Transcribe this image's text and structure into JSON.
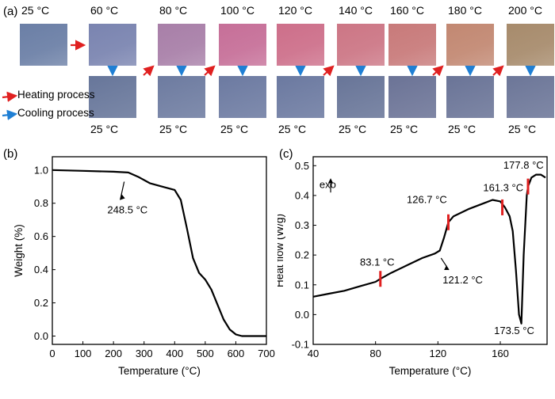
{
  "panel_a": {
    "label": "(a)",
    "top_temps": [
      "25 °C",
      "60 °C",
      "80 °C",
      "100 °C",
      "120 °C",
      "140 °C",
      "160 °C",
      "180 °C",
      "200 °C"
    ],
    "top_colors": [
      "#6b7fa6",
      "#7a84b0",
      "#a87fa8",
      "#c66f98",
      "#cd6f8a",
      "#cc7685",
      "#c87a7a",
      "#c28872",
      "#a78b6c"
    ],
    "bottom_temps": [
      "25 °C",
      "25 °C",
      "25 °C",
      "25 °C",
      "25 °C",
      "25 °C",
      "25 °C",
      "25 °C"
    ],
    "bottom_colors": [
      "#67769a",
      "#6d7ba0",
      "#6c7aa1",
      "#6b79a0",
      "#687598",
      "#6b7396",
      "#6a7497",
      "#6c7698"
    ],
    "legend": {
      "heating": "Heating process",
      "cooling": "Cooling process"
    },
    "arrow_colors": {
      "heating": "#e02020",
      "cooling": "#1f7fd4"
    }
  },
  "chart_data": [
    {
      "panel": "(b)",
      "type": "line",
      "xlabel": "Temperature (°C)",
      "ylabel": "Weight (%)",
      "xlim": [
        0,
        700
      ],
      "ylim": [
        -0.05,
        1.08
      ],
      "xticks": [
        0,
        100,
        200,
        300,
        400,
        500,
        600,
        700
      ],
      "yticks": [
        0.0,
        0.2,
        0.4,
        0.6,
        0.8,
        1.0
      ],
      "series": [
        {
          "x": [
            0,
            100,
            200,
            248.5,
            280,
            320,
            360,
            400,
            420,
            440,
            460,
            480,
            500,
            520,
            540,
            560,
            580,
            600,
            620,
            650,
            700
          ],
          "y": [
            1.0,
            0.995,
            0.99,
            0.985,
            0.96,
            0.92,
            0.9,
            0.88,
            0.82,
            0.65,
            0.47,
            0.38,
            0.34,
            0.28,
            0.19,
            0.1,
            0.04,
            0.01,
            0.0,
            0.0,
            0.0
          ]
        }
      ],
      "annotations": [
        {
          "text": "248.5 °C",
          "x": 248.5,
          "y": 0.985
        }
      ]
    },
    {
      "panel": "(c)",
      "type": "line",
      "xlabel": "Temperature (°C)",
      "ylabel": "Heat flow (W/g)",
      "exo_label": "exo",
      "xlim": [
        40,
        190
      ],
      "ylim": [
        -0.1,
        0.53
      ],
      "xticks": [
        40,
        80,
        120,
        160
      ],
      "yticks": [
        -0.1,
        0.0,
        0.1,
        0.2,
        0.3,
        0.4,
        0.5
      ],
      "series": [
        {
          "x": [
            40,
            50,
            60,
            70,
            80,
            83.1,
            90,
            100,
            110,
            118,
            121.2,
            124,
            126.7,
            130,
            140,
            150,
            155,
            160,
            163,
            166,
            168,
            170,
            172,
            173.5,
            175,
            177,
            177.8,
            180,
            183,
            186,
            189
          ],
          "y": [
            0.06,
            0.07,
            0.08,
            0.095,
            0.11,
            0.12,
            0.14,
            0.165,
            0.19,
            0.205,
            0.215,
            0.26,
            0.31,
            0.33,
            0.355,
            0.375,
            0.385,
            0.38,
            0.36,
            0.33,
            0.28,
            0.15,
            0.0,
            -0.03,
            0.2,
            0.4,
            0.43,
            0.46,
            0.47,
            0.47,
            0.46
          ]
        }
      ],
      "markers": [
        83.1,
        126.7,
        161.3,
        177.8
      ],
      "annotations": [
        {
          "text": "83.1 °C",
          "x": 83.1
        },
        {
          "text": "121.2 °C",
          "x": 121.2
        },
        {
          "text": "126.7 °C",
          "x": 126.7
        },
        {
          "text": "161.3 °C",
          "x": 161.3
        },
        {
          "text": "173.5 °C",
          "x": 173.5
        },
        {
          "text": "177.8 °C",
          "x": 177.8
        }
      ]
    }
  ]
}
